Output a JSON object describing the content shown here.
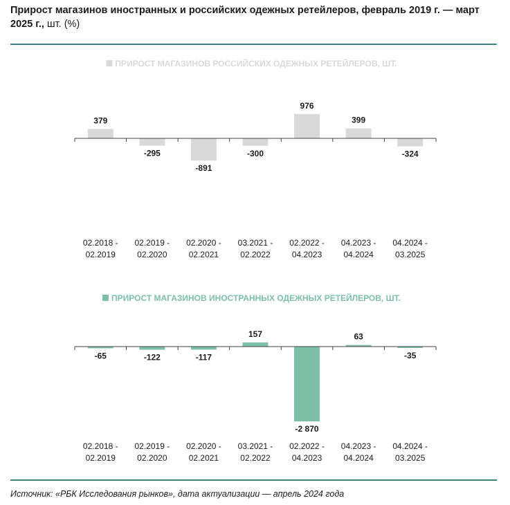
{
  "header": {
    "title_bold": "Прирост магазинов иностранных и российских одежных ретейлеров, февраль 2019 г. — март 2025 г.,",
    "title_unit": " шт. (%)"
  },
  "footer": {
    "source": "Источник: «РБК Исследования рынков», дата актуализации — апрель 2024 года"
  },
  "colors": {
    "russian": "#d9d9d9",
    "foreign": "#7dbfa7",
    "axis": "#404040",
    "rule": "#3f7f7c"
  },
  "chart_data": [
    {
      "type": "bar",
      "categories": [
        "02.2018 - 02.2019",
        "02.2019 - 02.2020",
        "02.2020 - 02.2021",
        "03.2021 - 02.2022",
        "02.2022 - 04.2023",
        "04.2023 - 04.2024",
        "04.2024 - 03.2025"
      ],
      "category_lines": [
        [
          "02.2018 -",
          "02.2019"
        ],
        [
          "02.2019 -",
          "02.2020"
        ],
        [
          "02.2020 -",
          "02.2021"
        ],
        [
          "03.2021 -",
          "02.2022"
        ],
        [
          "02.2022 -",
          "04.2023"
        ],
        [
          "04.2023 -",
          "04.2024"
        ],
        [
          "04.2024 -",
          "03.2025"
        ]
      ],
      "series": [
        {
          "name": "ПРИРОСТ МАГАЗИНОВ РОССИЙСКИХ ОДЕЖНЫХ РЕТЕЙЛЕРОВ, ШТ.",
          "values": [
            379,
            -295,
            -891,
            -300,
            976,
            399,
            -324
          ],
          "labels": [
            "379",
            "-295",
            "-891",
            "-300",
            "976",
            "399",
            "-324"
          ],
          "color": "#d9d9d9"
        }
      ],
      "legend_position": "top-center",
      "grid": false
    },
    {
      "type": "bar",
      "categories": [
        "02.2018 - 02.2019",
        "02.2019 - 02.2020",
        "02.2020 - 02.2021",
        "03.2021 - 02.2022",
        "02.2022 - 04.2023",
        "04.2023 - 04.2024",
        "04.2024 - 03.2025"
      ],
      "category_lines": [
        [
          "02.2018 -",
          "02.2019"
        ],
        [
          "02.2019 -",
          "02.2020"
        ],
        [
          "02.2020 -",
          "02.2021"
        ],
        [
          "03.2021 -",
          "02.2022"
        ],
        [
          "02.2022 -",
          "04.2023"
        ],
        [
          "04.2023 -",
          "04.2024"
        ],
        [
          "04.2024 -",
          "03.2025"
        ]
      ],
      "series": [
        {
          "name": "ПРИРОСТ МАГАЗИНОВ ИНОСТРАННЫХ ОДЕЖНЫХ РЕТЕЙЛЕРОВ, ШТ.",
          "values": [
            -65,
            -122,
            -117,
            157,
            -2870,
            63,
            -35
          ],
          "labels": [
            "-65",
            "-122",
            "-117",
            "157",
            "-2 870",
            "63",
            "-35"
          ],
          "color": "#7dbfa7"
        }
      ],
      "legend_position": "top-center",
      "grid": false
    }
  ]
}
